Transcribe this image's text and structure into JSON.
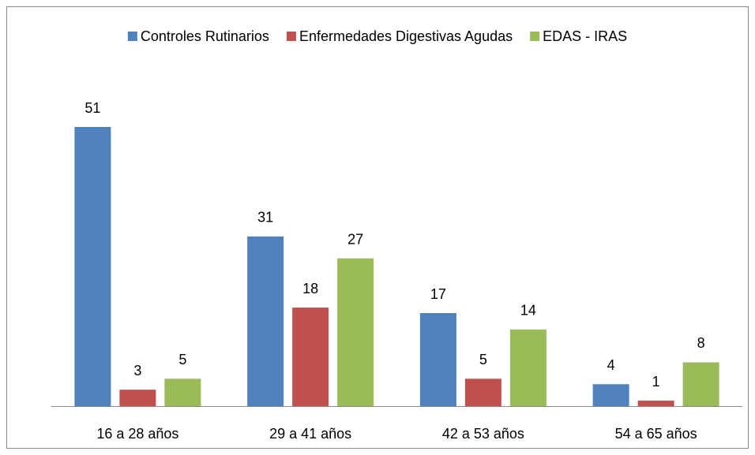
{
  "chart_data": {
    "type": "bar",
    "categories": [
      "16 a 28 años",
      "29 a 41 años",
      "42 a 53 años",
      "54 a 65 años"
    ],
    "series": [
      {
        "name": "Controles Rutinarios",
        "color": "#4f81bd",
        "values": [
          51,
          31,
          17,
          4
        ]
      },
      {
        "name": "Enfermedades Digestivas Agudas",
        "color": "#c0504d",
        "values": [
          3,
          18,
          5,
          1
        ]
      },
      {
        "name": "EDAS - IRAS",
        "color": "#9bbb59",
        "values": [
          5,
          27,
          14,
          8
        ]
      }
    ],
    "legend": "top"
  }
}
